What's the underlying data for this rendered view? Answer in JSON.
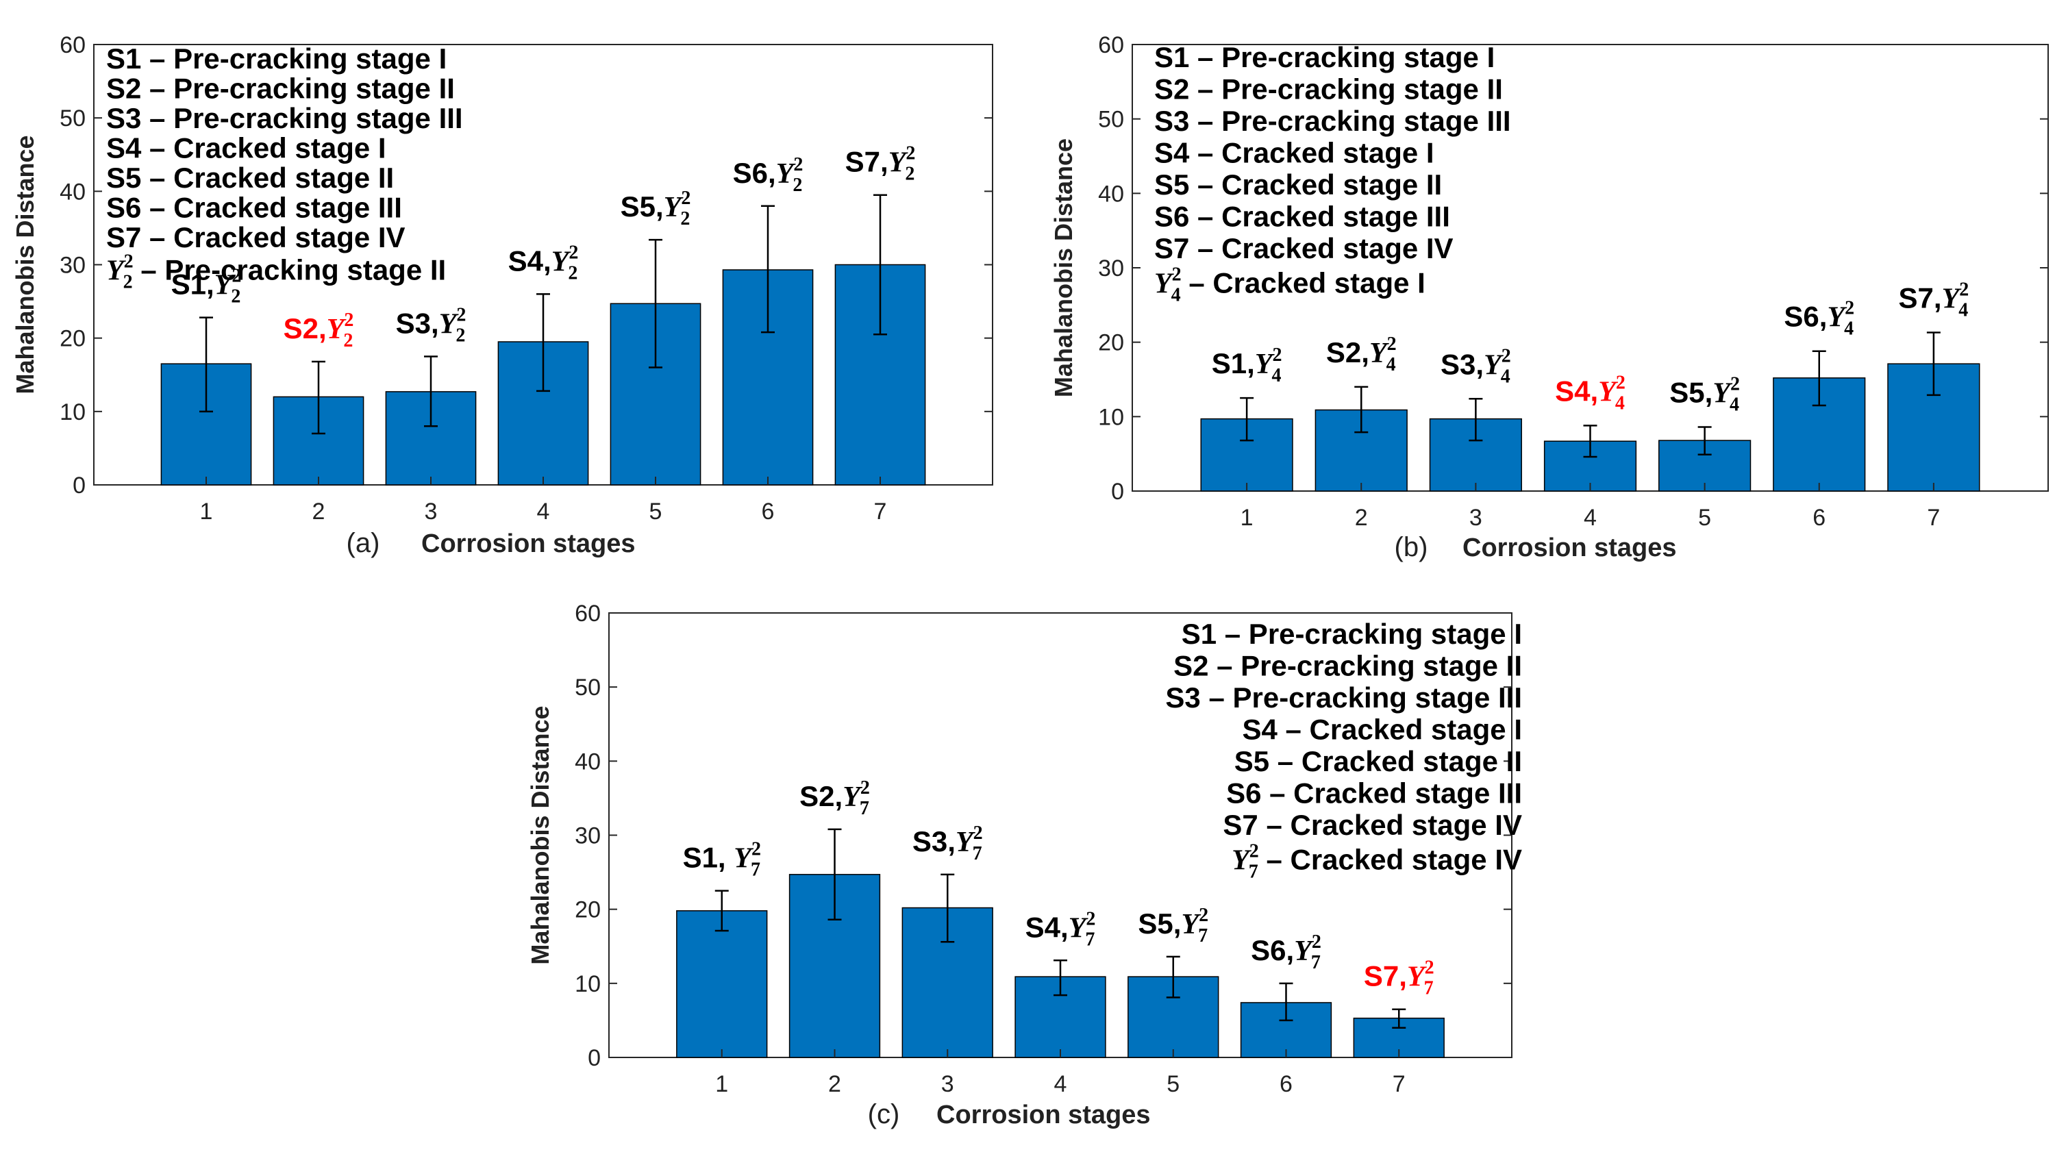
{
  "figure": {
    "colors": {
      "bar": "#0072BD",
      "axis": "#262626",
      "highlight": "#FF0000",
      "text": "#000000",
      "errorbar": "#000000"
    }
  },
  "chart_data": [
    {
      "type": "bar",
      "panel_letter": "(a)",
      "xlabel": "Corrosion stages",
      "ylabel": "Mahalanobis Distance",
      "categories": [
        "1",
        "2",
        "3",
        "4",
        "5",
        "6",
        "7"
      ],
      "values": [
        16.5,
        12,
        12.7,
        19.5,
        24.7,
        29.3,
        30
      ],
      "error_low": [
        10,
        7,
        8,
        12.8,
        16,
        20.8,
        20.5
      ],
      "error_high": [
        22.8,
        16.8,
        17.5,
        26,
        33.4,
        38,
        39.5
      ],
      "ylim": [
        0,
        60
      ],
      "yticks": [
        "0",
        "10",
        "20",
        "30",
        "40",
        "50",
        "60"
      ],
      "grid": false,
      "legend_position": "top-left",
      "legend": [
        "S1 – Pre-cracking stage I",
        "S2 – Pre-cracking stage II",
        "S3 – Pre-cracking stage III",
        "S4 – Cracked stage I",
        "S5 – Cracked stage II",
        "S6 – Cracked stage III",
        "S7 – Cracked stage IV"
      ],
      "reference_legend": {
        "symbol": "Y",
        "sup": "2",
        "sub": "2",
        "text": " – Pre-cracking stage II"
      },
      "bar_labels": [
        {
          "prefix": "S1,",
          "symbol": "Y",
          "sup": "2",
          "sub": "2",
          "highlight": false
        },
        {
          "prefix": "S2,",
          "symbol": "Y",
          "sup": "2",
          "sub": "2",
          "highlight": true
        },
        {
          "prefix": "S3,",
          "symbol": "Y",
          "sup": "2",
          "sub": "2",
          "highlight": false
        },
        {
          "prefix": "S4,",
          "symbol": "Y",
          "sup": "2",
          "sub": "2",
          "highlight": false
        },
        {
          "prefix": "S5,",
          "symbol": "Y",
          "sup": "2",
          "sub": "2",
          "highlight": false
        },
        {
          "prefix": "S6,",
          "symbol": "Y",
          "sup": "2",
          "sub": "2",
          "highlight": false
        },
        {
          "prefix": "S7,",
          "symbol": "Y",
          "sup": "2",
          "sub": "2",
          "highlight": false
        }
      ]
    },
    {
      "type": "bar",
      "panel_letter": "(b)",
      "xlabel": "Corrosion stages",
      "ylabel": "Mahalanobis Distance",
      "categories": [
        "1",
        "2",
        "3",
        "4",
        "5",
        "6",
        "7"
      ],
      "values": [
        9.7,
        10.9,
        9.7,
        6.7,
        6.8,
        15.2,
        17.1
      ],
      "error_low": [
        6.8,
        7.9,
        6.8,
        4.6,
        4.9,
        11.5,
        12.9
      ],
      "error_high": [
        12.5,
        14,
        12.4,
        8.8,
        8.6,
        18.8,
        21.3
      ],
      "ylim": [
        0,
        60
      ],
      "yticks": [
        "0",
        "10",
        "20",
        "30",
        "40",
        "50",
        "60"
      ],
      "grid": false,
      "legend_position": "top-left",
      "legend": [
        "S1 – Pre-cracking stage I",
        "S2 – Pre-cracking stage II",
        "S3 – Pre-cracking stage III",
        "S4 – Cracked stage I",
        "S5 – Cracked stage II",
        "S6 – Cracked stage III",
        "S7 – Cracked stage IV"
      ],
      "reference_legend": {
        "symbol": "Y",
        "sup": "2",
        "sub": "4",
        "text": " – Cracked stage I"
      },
      "bar_labels": [
        {
          "prefix": "S1,",
          "symbol": "Y",
          "sup": "2",
          "sub": "4",
          "highlight": false
        },
        {
          "prefix": "S2,",
          "symbol": "Y",
          "sup": "2",
          "sub": "4",
          "highlight": false
        },
        {
          "prefix": "S3,",
          "symbol": "Y",
          "sup": "2",
          "sub": "4",
          "highlight": false
        },
        {
          "prefix": "S4,",
          "symbol": "Y",
          "sup": "2",
          "sub": "4",
          "highlight": true
        },
        {
          "prefix": "S5,",
          "symbol": "Y",
          "sup": "2",
          "sub": "4",
          "highlight": false
        },
        {
          "prefix": "S6,",
          "symbol": "Y",
          "sup": "2",
          "sub": "4",
          "highlight": false
        },
        {
          "prefix": "S7,",
          "symbol": "Y",
          "sup": "2",
          "sub": "4",
          "highlight": false
        }
      ]
    },
    {
      "type": "bar",
      "panel_letter": "(c)",
      "xlabel": "Corrosion stages",
      "ylabel": "Mahalanobis Distance",
      "categories": [
        "1",
        "2",
        "3",
        "4",
        "5",
        "6",
        "7"
      ],
      "values": [
        19.8,
        24.7,
        20.2,
        10.9,
        10.9,
        7.4,
        5.3
      ],
      "error_low": [
        17.1,
        18.6,
        15.6,
        8.4,
        8.1,
        5,
        4
      ],
      "error_high": [
        22.5,
        30.8,
        24.7,
        13.1,
        13.6,
        10,
        6.5
      ],
      "ylim": [
        0,
        60
      ],
      "yticks": [
        "0",
        "10",
        "20",
        "30",
        "40",
        "50",
        "60"
      ],
      "grid": false,
      "legend_position": "top-right",
      "legend": [
        "S1 – Pre-cracking stage I",
        "S2 – Pre-cracking stage II",
        "S3 – Pre-cracking stage III",
        "S4 – Cracked stage I",
        "S5 – Cracked stage II",
        "S6 – Cracked stage III",
        "S7 – Cracked stage IV"
      ],
      "reference_legend": {
        "symbol": "Y",
        "sup": "2",
        "sub": "7",
        "text": " – Cracked stage IV"
      },
      "bar_labels": [
        {
          "prefix": "S1, ",
          "symbol": "Y",
          "sup": "2",
          "sub": "7",
          "highlight": false
        },
        {
          "prefix": "S2,",
          "symbol": "Y",
          "sup": "2",
          "sub": "7",
          "highlight": false
        },
        {
          "prefix": "S3,",
          "symbol": "Y",
          "sup": "2",
          "sub": "7",
          "highlight": false
        },
        {
          "prefix": "S4,",
          "symbol": "Y",
          "sup": "2",
          "sub": "7",
          "highlight": false
        },
        {
          "prefix": "S5,",
          "symbol": "Y",
          "sup": "2",
          "sub": "7",
          "highlight": false
        },
        {
          "prefix": "S6,",
          "symbol": "Y",
          "sup": "2",
          "sub": "7",
          "highlight": false
        },
        {
          "prefix": "S7,",
          "symbol": "Y",
          "sup": "2",
          "sub": "7",
          "highlight": true
        }
      ]
    }
  ]
}
